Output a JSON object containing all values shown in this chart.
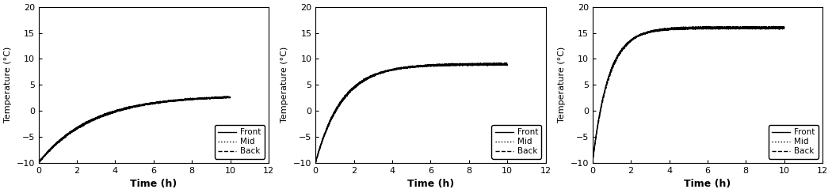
{
  "panels": [
    {
      "final_temp": 3.0,
      "tau": 2.8,
      "spread": 0.15
    },
    {
      "final_temp": 9.0,
      "tau": 1.4,
      "spread": 0.2
    },
    {
      "final_temp": 16.0,
      "tau": 0.85,
      "spread": 0.25
    }
  ],
  "t_start": 0.0,
  "t_end": 10.0,
  "t_init": -10.0,
  "xlim": [
    0,
    12
  ],
  "ylim": [
    -10,
    20
  ],
  "xticks": [
    0,
    2,
    4,
    6,
    8,
    10,
    12
  ],
  "yticks": [
    -10,
    -5,
    0,
    5,
    10,
    15,
    20
  ],
  "xlabel": "Time (h)",
  "ylabel": "Temperature (°C)",
  "legend_labels": [
    "Front",
    "Mid",
    "Back"
  ],
  "line_styles": [
    "-",
    ":",
    "--"
  ],
  "line_color": "#000000",
  "line_width": 1.0,
  "background_color": "#ffffff",
  "font_size": 8,
  "label_font_size": 9,
  "legend_font_size": 7.5
}
